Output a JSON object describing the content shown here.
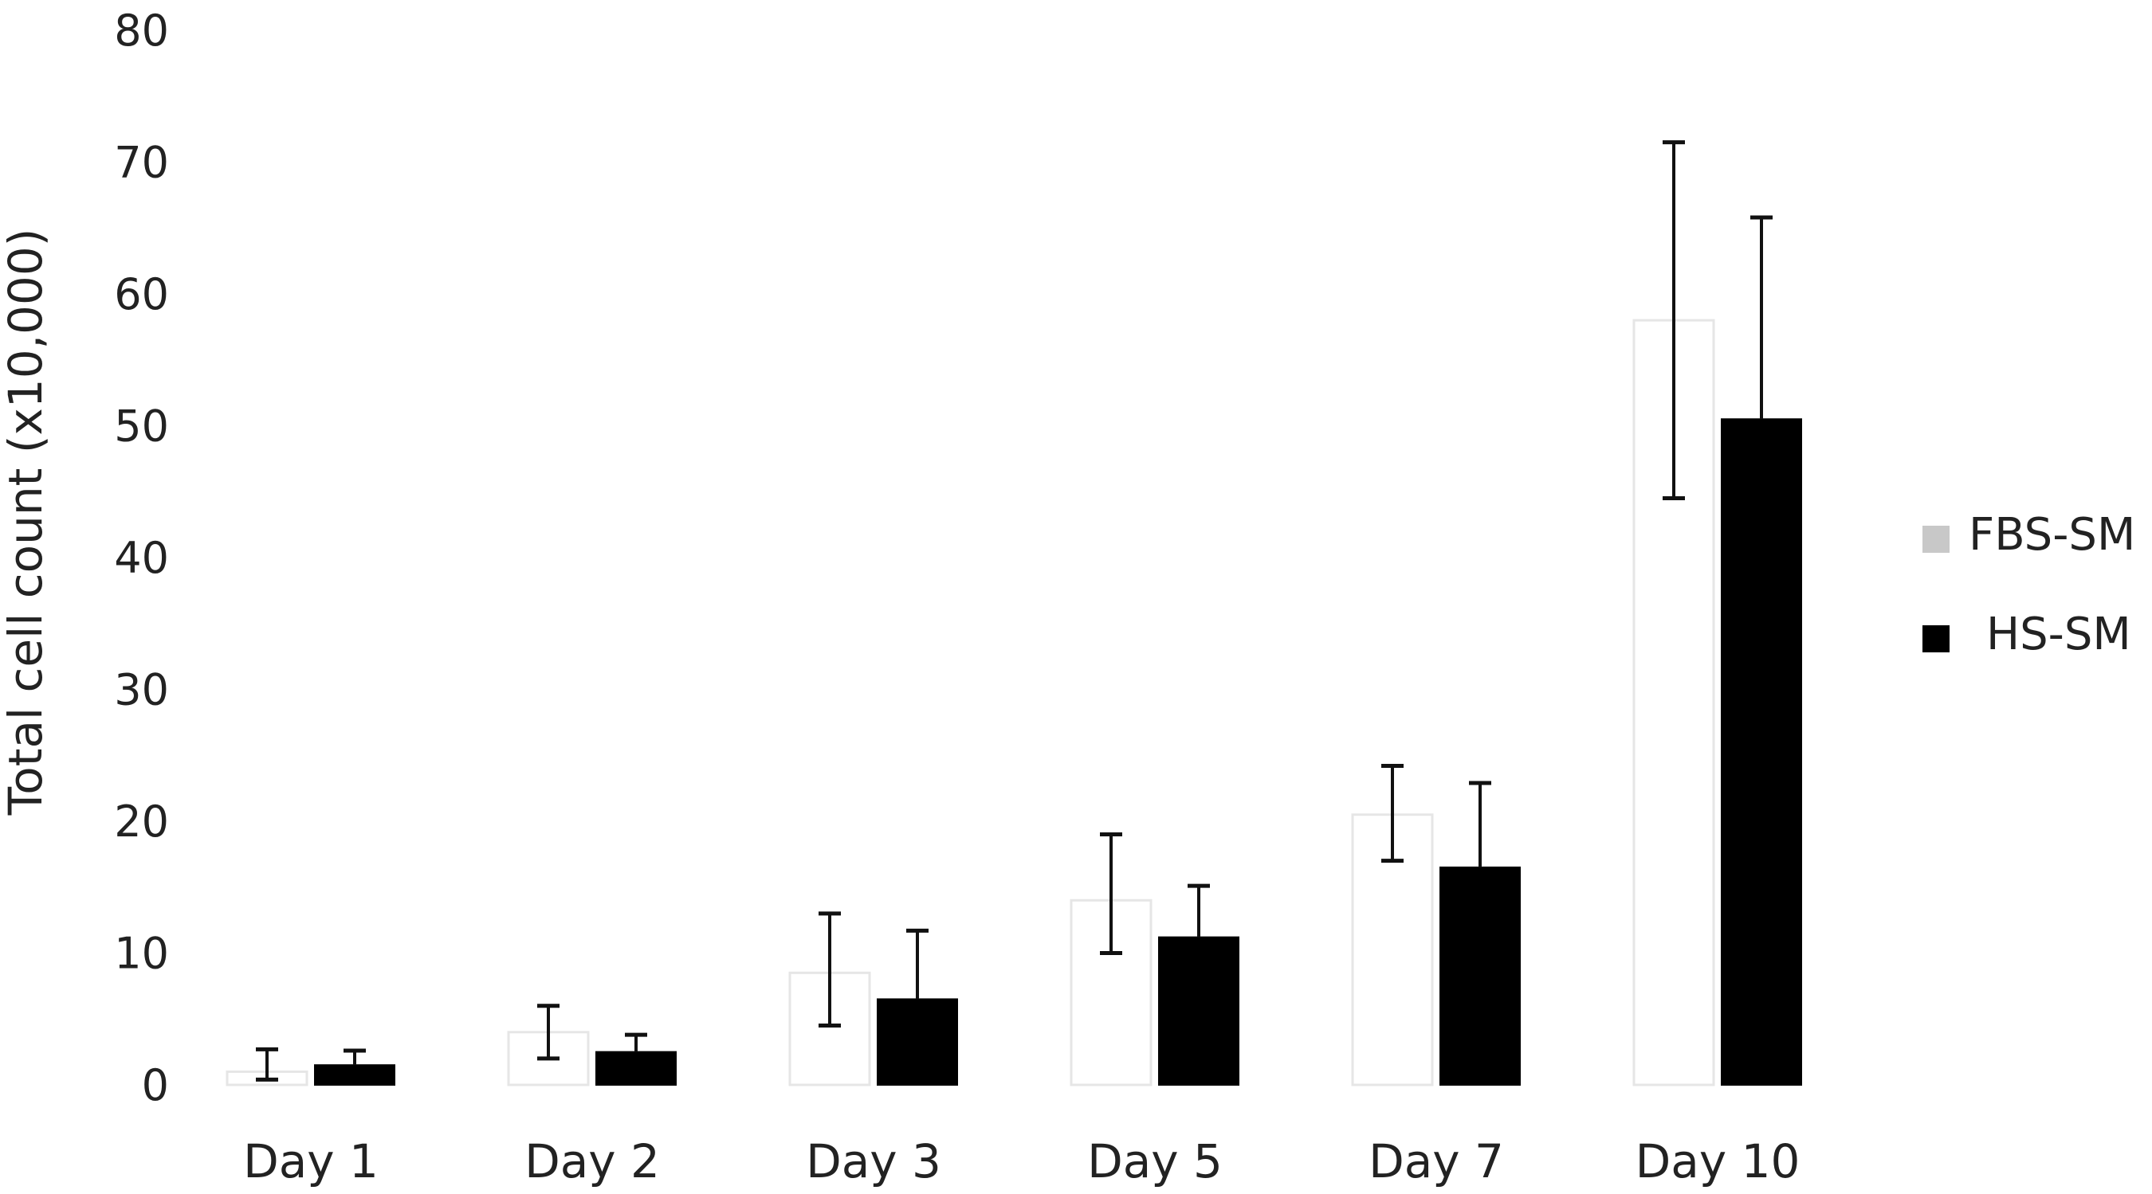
{
  "chart_data": {
    "type": "bar",
    "categories": [
      "Day 1",
      "Day 2",
      "Day 3",
      "Day 5",
      "Day 7",
      "Day 10"
    ],
    "series": [
      {
        "name": "FBS-SM",
        "color": "#ffffff",
        "legend_color": "#c8c8c8",
        "values": [
          1,
          4,
          8.5,
          14,
          20.5,
          58
        ],
        "error_low": [
          0.4,
          2,
          4.5,
          10,
          17,
          44.5
        ],
        "error_high": [
          2.7,
          6,
          13,
          19,
          24.2,
          71.5
        ]
      },
      {
        "name": "HS-SM",
        "color": "#000000",
        "legend_color": "#000000",
        "values": [
          1.5,
          2.5,
          6.5,
          11.2,
          16.5,
          50.5
        ],
        "error_low": [
          1.5,
          2.5,
          6.5,
          11.2,
          16.5,
          50.5
        ],
        "error_high": [
          2.6,
          3.8,
          11.7,
          15.1,
          22.9,
          65.8
        ]
      }
    ],
    "ylabel": "Total cell count (x10,000)",
    "xlabel": "",
    "ylim": [
      0,
      80
    ],
    "yticks": [
      0,
      10,
      20,
      30,
      40,
      50,
      60,
      70,
      80
    ],
    "grid": false,
    "legend_position": "right"
  }
}
